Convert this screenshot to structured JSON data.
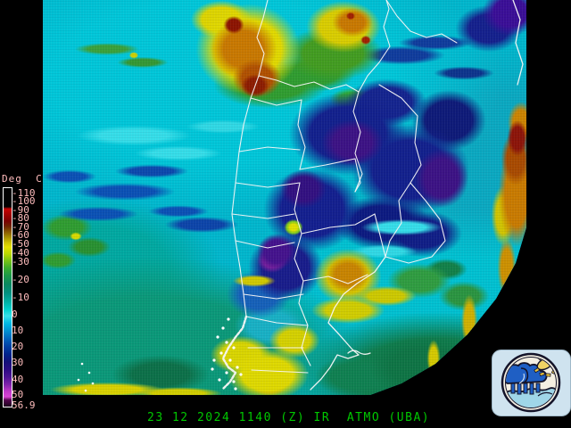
{
  "map": {
    "description": "Infrared satellite image of southern South America with white country and province borders",
    "border_color": "#ffffff",
    "base_color": "#00b6cc"
  },
  "colorbar": {
    "title": "Deg  C",
    "label_color": "#ffbdbd",
    "ticks": [
      "-110",
      "-100",
      "-90",
      "-80",
      "-70",
      "-60",
      "-50",
      "-40",
      "-30",
      "-20",
      "-10",
      "0",
      "10",
      "20",
      "30",
      "40",
      "50",
      "56.9"
    ],
    "gradient": [
      {
        "p": 0,
        "c": "#000000"
      },
      {
        "p": 8.5,
        "c": "#000000"
      },
      {
        "p": 9.5,
        "c": "#c80000"
      },
      {
        "p": 12,
        "c": "#a40000"
      },
      {
        "p": 15,
        "c": "#7c0000"
      },
      {
        "p": 17.5,
        "c": "#6e2400"
      },
      {
        "p": 20,
        "c": "#8a5a00"
      },
      {
        "p": 22.5,
        "c": "#a89000"
      },
      {
        "p": 25,
        "c": "#d0c400"
      },
      {
        "p": 27,
        "c": "#e4e000"
      },
      {
        "p": 30,
        "c": "#bcd800"
      },
      {
        "p": 33,
        "c": "#7cc414"
      },
      {
        "p": 36.5,
        "c": "#3cac2c"
      },
      {
        "p": 40,
        "c": "#1c9848"
      },
      {
        "p": 44,
        "c": "#0a8860"
      },
      {
        "p": 48,
        "c": "#009080"
      },
      {
        "p": 52,
        "c": "#00b0a4"
      },
      {
        "p": 55.5,
        "c": "#00d0cc"
      },
      {
        "p": 58.5,
        "c": "#38e0e8"
      },
      {
        "p": 62,
        "c": "#00b8e4"
      },
      {
        "p": 65.5,
        "c": "#0090d0"
      },
      {
        "p": 69,
        "c": "#0064bc"
      },
      {
        "p": 72.5,
        "c": "#0040a4"
      },
      {
        "p": 76,
        "c": "#00248c"
      },
      {
        "p": 79.5,
        "c": "#141078"
      },
      {
        "p": 83,
        "c": "#2c0c84"
      },
      {
        "p": 86.5,
        "c": "#4c1494"
      },
      {
        "p": 90,
        "c": "#8024ac"
      },
      {
        "p": 93,
        "c": "#c038c8"
      },
      {
        "p": 95.5,
        "c": "#d844d4"
      },
      {
        "p": 97,
        "c": "#55064e"
      },
      {
        "p": 100,
        "c": "#1c001c"
      }
    ]
  },
  "footer": {
    "text": "23 12 2024 1140 (Z) IR  ATMO (UBA)",
    "color": "#00c800"
  },
  "logo": {
    "name": "ATMO (UBA) department logo",
    "background": "#cfe3ef",
    "cloud_color": "#1f5fc4",
    "sun_color": "#f2d464",
    "wave_color": "#9fd6e8"
  }
}
